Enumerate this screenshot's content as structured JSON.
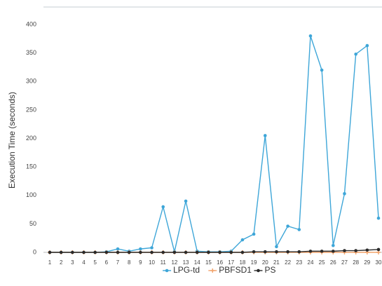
{
  "chart_data": {
    "type": "line",
    "y_label": "Execution Time (seconds)",
    "categories": [
      "1",
      "2",
      "3",
      "4",
      "5",
      "6",
      "7",
      "8",
      "9",
      "10",
      "11",
      "12",
      "13",
      "14",
      "15",
      "16",
      "17",
      "18",
      "19",
      "20",
      "21",
      "22",
      "23",
      "24",
      "25",
      "26",
      "27",
      "28",
      "29",
      "30"
    ],
    "series": [
      {
        "name": "LPG-td",
        "color": "#3ea6d8",
        "marker": "circle",
        "values": [
          0,
          0,
          0,
          0,
          0,
          1,
          6,
          2,
          6,
          8,
          80,
          1,
          90,
          2,
          1,
          1,
          2,
          22,
          32,
          205,
          10,
          46,
          40,
          380,
          320,
          12,
          103,
          348,
          363,
          60
        ]
      },
      {
        "name": "PBFSD1",
        "color": "#f2a36b",
        "marker": "plus",
        "values": [
          0,
          0,
          0,
          0,
          0,
          0,
          0,
          0,
          0,
          0,
          0,
          0,
          0,
          0,
          0,
          0,
          0,
          0,
          0,
          0,
          0,
          0,
          0,
          0,
          0,
          0,
          0,
          0,
          0,
          0
        ]
      },
      {
        "name": "PS",
        "color": "#2b2b2b",
        "marker": "circle",
        "values": [
          0,
          0,
          0,
          0,
          0,
          0,
          0,
          0,
          0,
          0,
          0,
          0,
          0,
          0,
          0,
          0,
          0,
          0,
          1,
          1,
          1,
          1,
          1,
          2,
          2,
          2,
          3,
          3,
          4,
          5
        ]
      }
    ],
    "ylim": [
      0,
      400
    ],
    "yticks": [
      0,
      50,
      100,
      150,
      200,
      250,
      300,
      350,
      400
    ],
    "grid": false,
    "legend": "bottom"
  }
}
